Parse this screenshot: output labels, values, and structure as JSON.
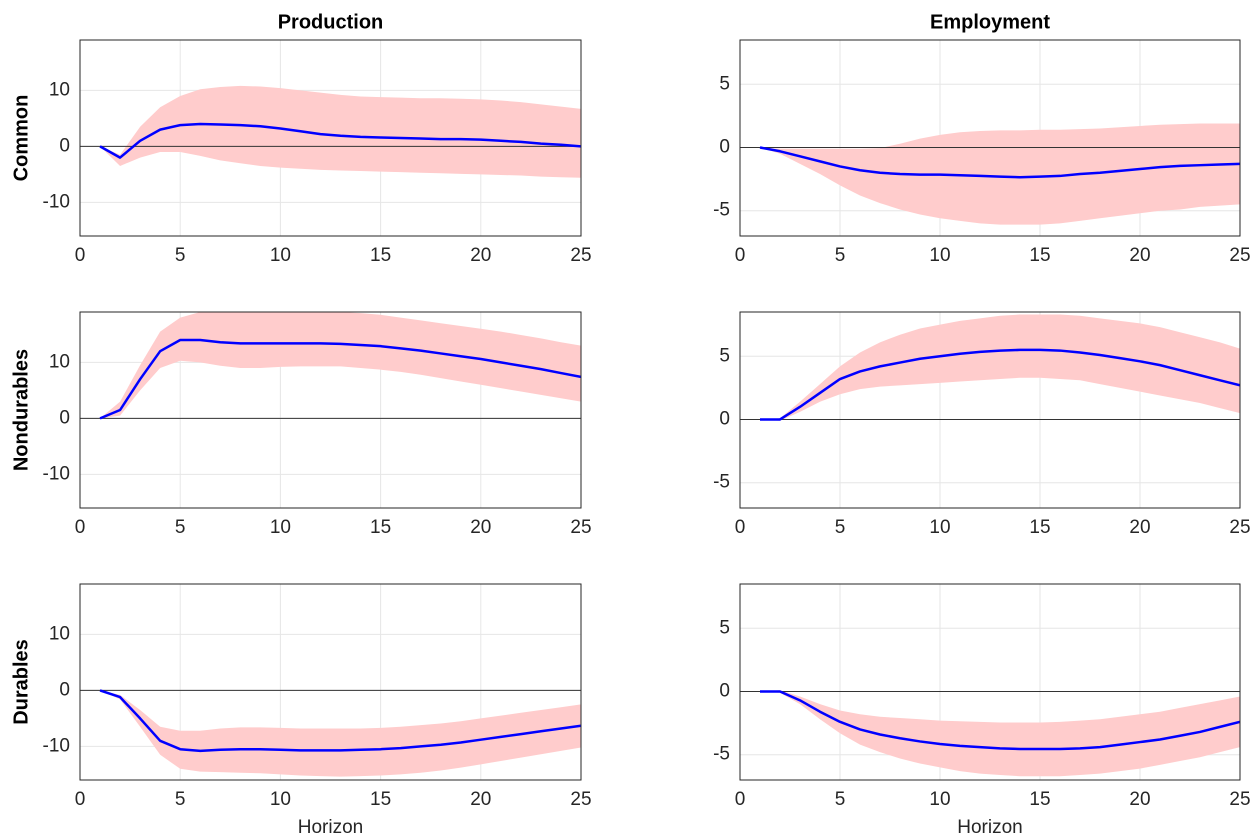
{
  "chart_data": [
    {
      "type": "line",
      "title": "Production",
      "ylabel": "Common",
      "x": [
        1,
        2,
        3,
        4,
        5,
        6,
        7,
        8,
        9,
        10,
        11,
        12,
        13,
        14,
        15,
        16,
        17,
        18,
        19,
        20,
        21,
        22,
        23,
        24,
        25
      ],
      "values": [
        0,
        -2,
        1,
        3,
        3.8,
        4,
        3.9,
        3.8,
        3.6,
        3.2,
        2.7,
        2.2,
        1.9,
        1.7,
        1.6,
        1.5,
        1.4,
        1.3,
        1.3,
        1.2,
        1,
        0.8,
        0.5,
        0.3,
        0
      ],
      "band_upper": [
        0,
        -1.5,
        3.5,
        7,
        9,
        10.2,
        10.6,
        10.8,
        10.7,
        10.4,
        10,
        9.6,
        9.2,
        8.9,
        8.8,
        8.7,
        8.6,
        8.6,
        8.5,
        8.4,
        8.2,
        7.9,
        7.5,
        7.1,
        6.7
      ],
      "band_lower": [
        0,
        -3.5,
        -2,
        -1,
        -1,
        -1.7,
        -2.5,
        -3,
        -3.5,
        -3.8,
        -4,
        -4.2,
        -4.3,
        -4.4,
        -4.5,
        -4.6,
        -4.7,
        -4.8,
        -4.9,
        -5,
        -5.1,
        -5.2,
        -5.4,
        -5.5,
        -5.6
      ],
      "color": "#0000ff",
      "band_color": "#ffcccc",
      "reference_line": 0,
      "xlim": [
        0,
        25
      ],
      "xticks": [
        0,
        5,
        10,
        15,
        20,
        25
      ],
      "ylim": [
        -16,
        19
      ],
      "yticks": [
        -10,
        0,
        10
      ],
      "grid": true
    },
    {
      "type": "line",
      "title": "Employment",
      "x": [
        1,
        2,
        3,
        4,
        5,
        6,
        7,
        8,
        9,
        10,
        11,
        12,
        13,
        14,
        15,
        16,
        17,
        18,
        19,
        20,
        21,
        22,
        23,
        24,
        25
      ],
      "values": [
        0,
        -0.3,
        -0.7,
        -1.1,
        -1.5,
        -1.8,
        -2,
        -2.1,
        -2.15,
        -2.15,
        -2.2,
        -2.25,
        -2.3,
        -2.35,
        -2.3,
        -2.25,
        -2.1,
        -2,
        -1.85,
        -1.7,
        -1.55,
        -1.45,
        -1.4,
        -1.35,
        -1.3
      ],
      "band_upper": [
        0,
        -0.1,
        -0.1,
        -0.1,
        -0.1,
        -0.1,
        -0.05,
        0.3,
        0.7,
        1,
        1.2,
        1.3,
        1.35,
        1.35,
        1.4,
        1.4,
        1.45,
        1.5,
        1.6,
        1.7,
        1.8,
        1.85,
        1.9,
        1.9,
        1.9
      ],
      "band_lower": [
        0,
        -0.5,
        -1.3,
        -2.1,
        -3,
        -3.8,
        -4.4,
        -4.9,
        -5.3,
        -5.6,
        -5.8,
        -6,
        -6.1,
        -6.1,
        -6.1,
        -6,
        -5.8,
        -5.6,
        -5.4,
        -5.2,
        -5,
        -4.9,
        -4.7,
        -4.6,
        -4.5
      ],
      "color": "#0000ff",
      "band_color": "#ffcccc",
      "reference_line": 0,
      "xlim": [
        0,
        25
      ],
      "xticks": [
        0,
        5,
        10,
        15,
        20,
        25
      ],
      "ylim": [
        -7,
        8.5
      ],
      "yticks": [
        -5,
        0,
        5
      ],
      "grid": true
    },
    {
      "type": "line",
      "ylabel": "Nondurables",
      "x": [
        1,
        2,
        3,
        4,
        5,
        6,
        7,
        8,
        9,
        10,
        11,
        12,
        13,
        14,
        15,
        16,
        17,
        18,
        19,
        20,
        21,
        22,
        23,
        24,
        25
      ],
      "values": [
        0,
        1.5,
        7,
        12,
        14,
        14,
        13.6,
        13.4,
        13.4,
        13.4,
        13.4,
        13.4,
        13.3,
        13.1,
        12.9,
        12.5,
        12.1,
        11.6,
        11.1,
        10.6,
        10,
        9.4,
        8.8,
        8.1,
        7.4
      ],
      "band_upper": [
        0,
        3,
        9.5,
        15.5,
        18,
        19,
        19,
        19,
        19,
        19,
        19,
        19,
        19,
        18.8,
        18.5,
        18,
        17.5,
        17,
        16.5,
        16,
        15.5,
        14.9,
        14.3,
        13.6,
        13
      ],
      "band_lower": [
        0,
        0.5,
        5,
        9,
        10.3,
        10,
        9.4,
        9,
        9,
        9.2,
        9.3,
        9.3,
        9.3,
        9,
        8.7,
        8.3,
        7.8,
        7.2,
        6.6,
        6,
        5.4,
        4.8,
        4.2,
        3.6,
        3
      ],
      "color": "#0000ff",
      "band_color": "#ffcccc",
      "reference_line": 0,
      "xlim": [
        0,
        25
      ],
      "xticks": [
        0,
        5,
        10,
        15,
        20,
        25
      ],
      "ylim": [
        -16,
        19
      ],
      "yticks": [
        -10,
        0,
        10
      ],
      "grid": true
    },
    {
      "type": "line",
      "x": [
        1,
        2,
        3,
        4,
        5,
        6,
        7,
        8,
        9,
        10,
        11,
        12,
        13,
        14,
        15,
        16,
        17,
        18,
        19,
        20,
        21,
        22,
        23,
        24,
        25
      ],
      "values": [
        0,
        0,
        1,
        2.1,
        3.2,
        3.8,
        4.2,
        4.5,
        4.8,
        5,
        5.2,
        5.35,
        5.45,
        5.5,
        5.5,
        5.45,
        5.3,
        5.1,
        4.85,
        4.6,
        4.3,
        3.9,
        3.5,
        3.1,
        2.7
      ],
      "band_upper": [
        0,
        0.1,
        1.4,
        2.8,
        4.2,
        5.3,
        6.1,
        6.7,
        7.2,
        7.5,
        7.8,
        8,
        8.2,
        8.3,
        8.3,
        8.3,
        8.2,
        8,
        7.8,
        7.6,
        7.3,
        6.9,
        6.5,
        6.1,
        5.6
      ],
      "band_lower": [
        0,
        -0.1,
        0.6,
        1.4,
        2,
        2.4,
        2.6,
        2.7,
        2.8,
        2.9,
        3,
        3.1,
        3.2,
        3.3,
        3.3,
        3.2,
        3.1,
        2.8,
        2.5,
        2.2,
        1.9,
        1.6,
        1.3,
        0.9,
        0.5
      ],
      "color": "#0000ff",
      "band_color": "#ffcccc",
      "reference_line": 0,
      "xlim": [
        0,
        25
      ],
      "xticks": [
        0,
        5,
        10,
        15,
        20,
        25
      ],
      "ylim": [
        -7,
        8.5
      ],
      "yticks": [
        -5,
        0,
        5
      ],
      "grid": true
    },
    {
      "type": "line",
      "ylabel": "Durables",
      "xlabel": "Horizon",
      "x": [
        1,
        2,
        3,
        4,
        5,
        6,
        7,
        8,
        9,
        10,
        11,
        12,
        13,
        14,
        15,
        16,
        17,
        18,
        19,
        20,
        21,
        22,
        23,
        24,
        25
      ],
      "values": [
        0,
        -1.2,
        -5,
        -9,
        -10.5,
        -10.8,
        -10.6,
        -10.5,
        -10.5,
        -10.6,
        -10.7,
        -10.7,
        -10.7,
        -10.6,
        -10.5,
        -10.3,
        -10,
        -9.7,
        -9.3,
        -8.8,
        -8.3,
        -7.8,
        -7.3,
        -6.8,
        -6.3
      ],
      "band_upper": [
        0,
        -0.8,
        -3.5,
        -6.5,
        -7.2,
        -7.2,
        -6.8,
        -6.6,
        -6.6,
        -6.7,
        -6.8,
        -6.8,
        -6.8,
        -6.8,
        -6.7,
        -6.5,
        -6.2,
        -5.9,
        -5.5,
        -5,
        -4.5,
        -4,
        -3.5,
        -3,
        -2.5
      ],
      "band_lower": [
        0,
        -1.6,
        -6.5,
        -11.5,
        -14,
        -14.5,
        -14.6,
        -14.7,
        -14.8,
        -15,
        -15.2,
        -15.3,
        -15.4,
        -15.3,
        -15.2,
        -15,
        -14.7,
        -14.3,
        -13.8,
        -13.2,
        -12.6,
        -12,
        -11.4,
        -10.8,
        -10.2
      ],
      "color": "#0000ff",
      "band_color": "#ffcccc",
      "reference_line": 0,
      "xlim": [
        0,
        25
      ],
      "xticks": [
        0,
        5,
        10,
        15,
        20,
        25
      ],
      "ylim": [
        -16,
        19
      ],
      "yticks": [
        -10,
        0,
        10
      ],
      "grid": true
    },
    {
      "type": "line",
      "xlabel": "Horizon",
      "x": [
        1,
        2,
        3,
        4,
        5,
        6,
        7,
        8,
        9,
        10,
        11,
        12,
        13,
        14,
        15,
        16,
        17,
        18,
        19,
        20,
        21,
        22,
        23,
        24,
        25
      ],
      "values": [
        0,
        0,
        -0.7,
        -1.6,
        -2.4,
        -3,
        -3.4,
        -3.7,
        -3.95,
        -4.15,
        -4.3,
        -4.4,
        -4.5,
        -4.55,
        -4.55,
        -4.55,
        -4.5,
        -4.4,
        -4.2,
        -4,
        -3.8,
        -3.5,
        -3.2,
        -2.8,
        -2.4
      ],
      "band_upper": [
        0,
        0.1,
        -0.4,
        -1,
        -1.5,
        -1.8,
        -2,
        -2.1,
        -2.2,
        -2.3,
        -2.35,
        -2.4,
        -2.45,
        -2.45,
        -2.45,
        -2.4,
        -2.3,
        -2.2,
        -2,
        -1.8,
        -1.6,
        -1.3,
        -1,
        -0.7,
        -0.4
      ],
      "band_lower": [
        0,
        -0.1,
        -1,
        -2.2,
        -3.3,
        -4.2,
        -4.8,
        -5.3,
        -5.7,
        -6,
        -6.3,
        -6.5,
        -6.6,
        -6.7,
        -6.7,
        -6.7,
        -6.6,
        -6.5,
        -6.3,
        -6.1,
        -5.8,
        -5.5,
        -5.2,
        -4.8,
        -4.4
      ],
      "color": "#0000ff",
      "band_color": "#ffcccc",
      "reference_line": 0,
      "xlim": [
        0,
        25
      ],
      "xticks": [
        0,
        5,
        10,
        15,
        20,
        25
      ],
      "ylim": [
        -7,
        8.5
      ],
      "yticks": [
        -5,
        0,
        5
      ],
      "grid": true
    }
  ]
}
